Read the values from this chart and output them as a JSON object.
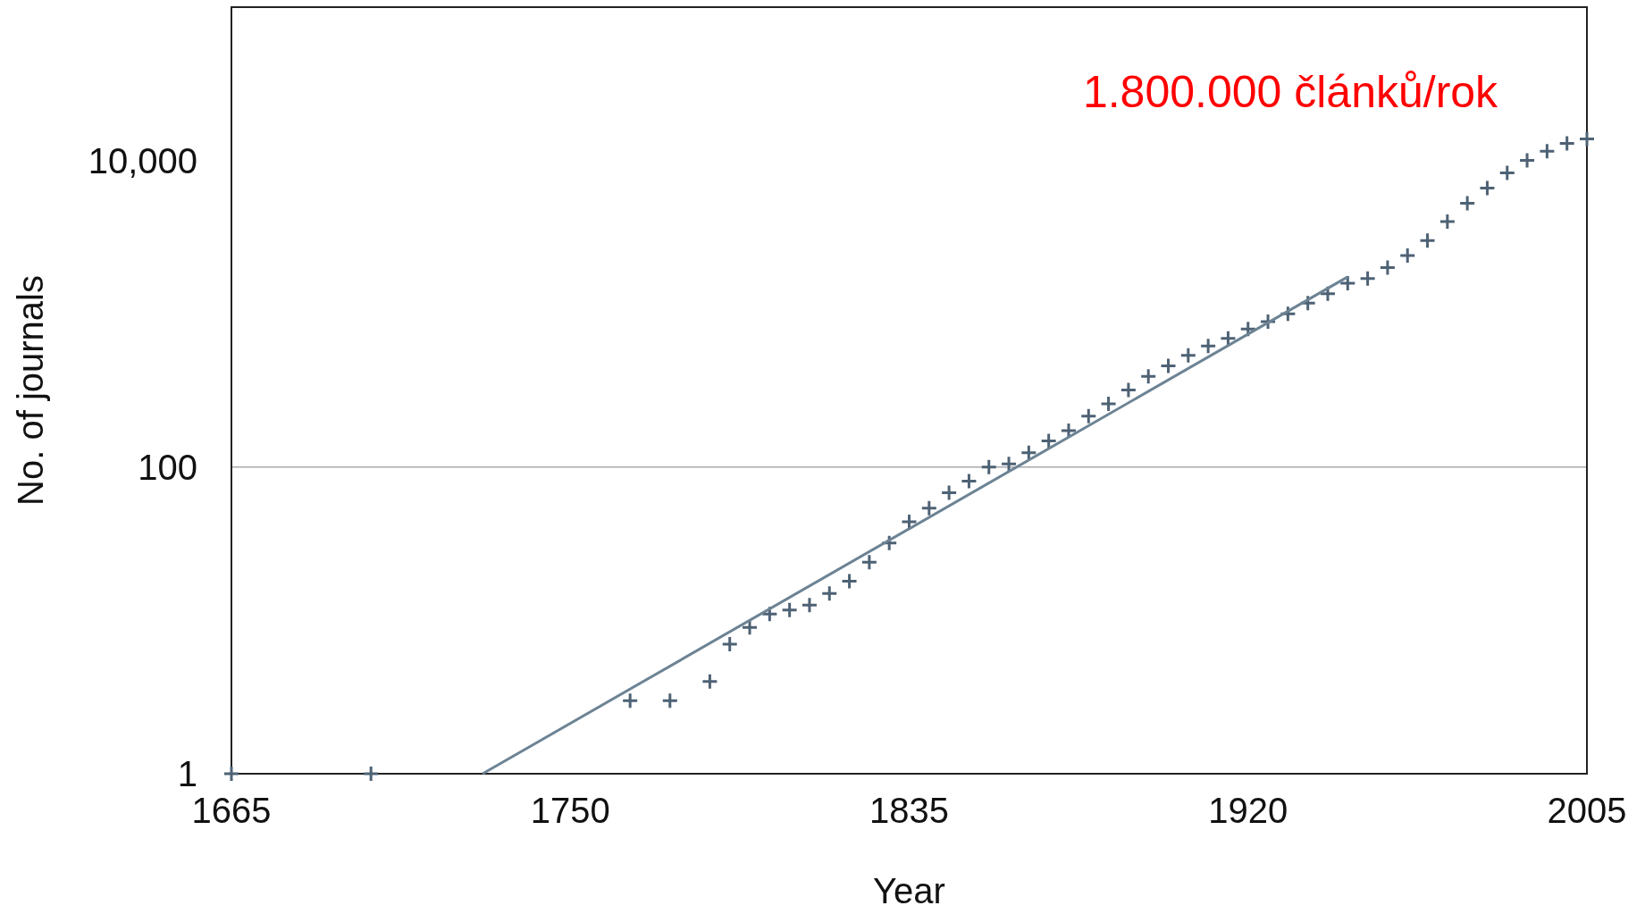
{
  "chart_data": {
    "type": "scatter",
    "xlabel": "Year",
    "ylabel": "No. of journals",
    "log": "y",
    "xlim": [
      1665,
      2005
    ],
    "xticks": [
      1665,
      1750,
      1835,
      1920,
      2005
    ],
    "ylim": [
      1,
      100000
    ],
    "yticks": [
      1,
      100,
      {
        "value": 10000,
        "label": "10,000"
      }
    ],
    "grid": false,
    "ref_lines": [
      {
        "axis": "y",
        "value": 100,
        "color": "#aaaaaa"
      }
    ],
    "annotations": [
      "1.800.000 článků/rok"
    ],
    "series": [
      {
        "marker": "cross",
        "color": "#4e6275",
        "x": [
          1665,
          1700,
          1765,
          1775,
          1785,
          1790,
          1795,
          1800,
          1805,
          1810,
          1815,
          1820,
          1825,
          1830,
          1835,
          1840,
          1845,
          1850,
          1855,
          1860,
          1865,
          1870,
          1875,
          1880,
          1885,
          1890,
          1895,
          1900,
          1905,
          1910,
          1915,
          1920,
          1925,
          1930,
          1935,
          1940,
          1945,
          1950,
          1955,
          1960,
          1965,
          1970,
          1975,
          1980,
          1985,
          1990,
          1995,
          2000,
          2005
        ],
        "values": [
          1,
          1,
          3,
          3,
          4,
          7,
          9,
          11,
          11.7,
          12.6,
          15,
          18,
          24,
          32,
          44,
          54,
          68,
          81,
          100,
          105,
          124,
          148,
          173,
          215,
          259,
          318,
          390,
          457,
          536,
          617,
          690,
          795,
          890,
          1000,
          1175,
          1350,
          1580,
          1700,
          2000,
          2400,
          3000,
          4000,
          5250,
          6600,
          8300,
          10000,
          11500,
          12900,
          13800
        ]
      },
      {
        "type": "line",
        "color": "#6c8394",
        "x": [
          1728,
          1945
        ],
        "values": [
          1,
          1740
        ]
      }
    ]
  }
}
